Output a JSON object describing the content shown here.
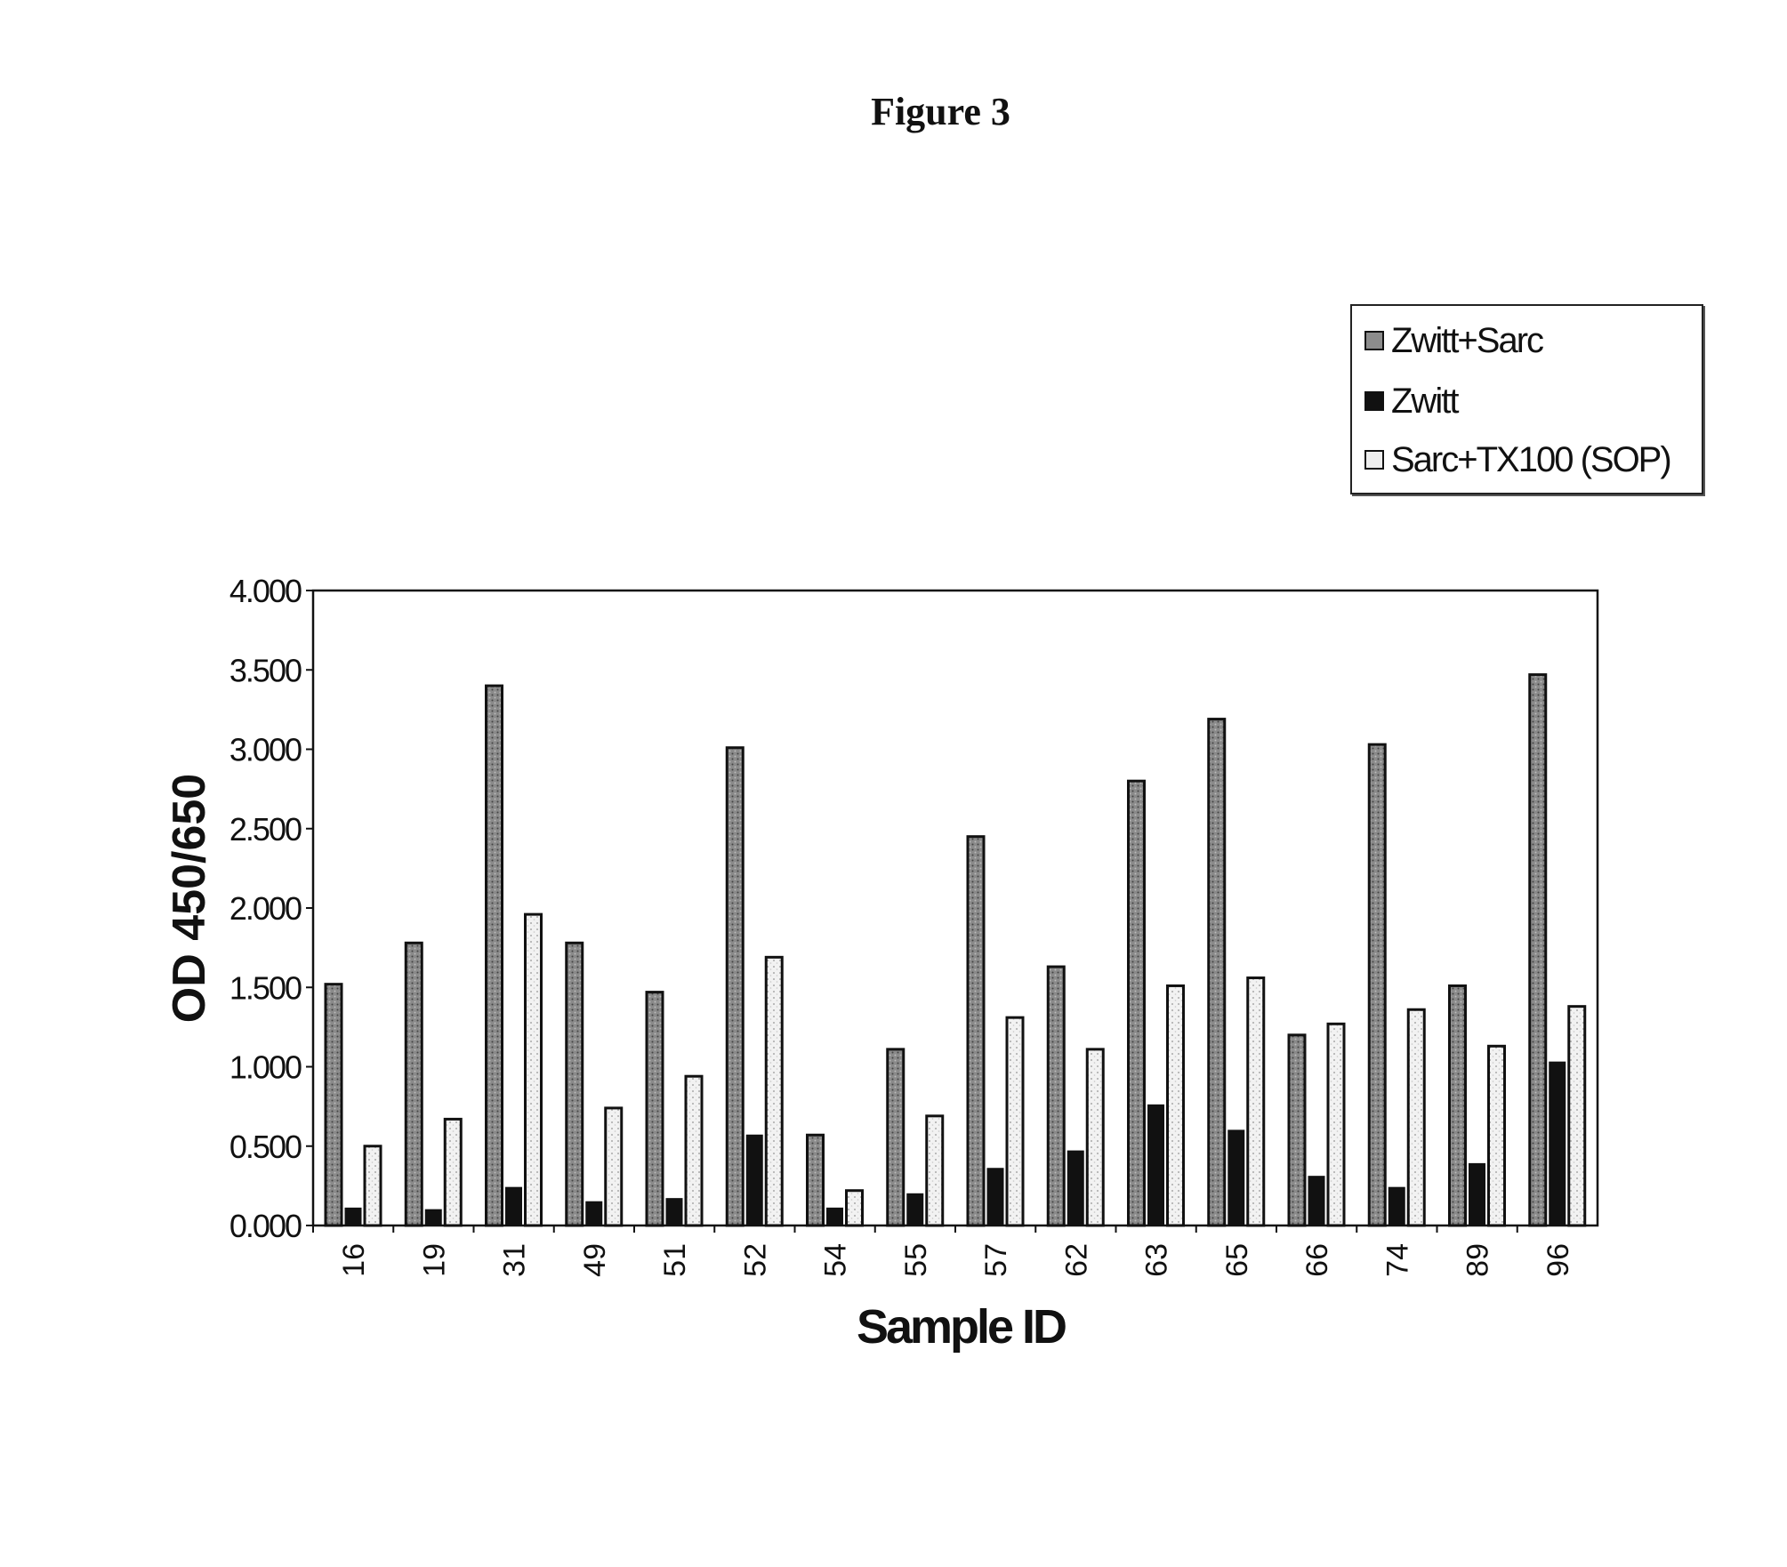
{
  "figure": {
    "title": "Figure 3"
  },
  "chart_data": {
    "type": "bar",
    "title": "",
    "xlabel": "Sample ID",
    "ylabel": "OD 450/650",
    "ylim": [
      0,
      4
    ],
    "yticks": [
      "0.000",
      "0.500",
      "1.000",
      "1.500",
      "2.000",
      "2.500",
      "3.000",
      "3.500",
      "4.000"
    ],
    "ytick_values": [
      0,
      0.5,
      1,
      1.5,
      2,
      2.5,
      3,
      3.5,
      4
    ],
    "categories": [
      "16",
      "19",
      "31",
      "49",
      "51",
      "52",
      "54",
      "55",
      "57",
      "62",
      "63",
      "65",
      "66",
      "74",
      "89",
      "96"
    ],
    "series": [
      {
        "name": "Zwitt+Sarc",
        "color": "#9a9a9a",
        "pattern": "dots-dark",
        "values": [
          1.52,
          1.78,
          3.4,
          1.78,
          1.47,
          3.01,
          0.57,
          1.11,
          2.45,
          1.63,
          2.8,
          3.19,
          1.2,
          3.03,
          1.51,
          3.47
        ]
      },
      {
        "name": "Zwitt",
        "color": "#111111",
        "pattern": "solid",
        "values": [
          0.11,
          0.1,
          0.24,
          0.15,
          0.17,
          0.57,
          0.11,
          0.2,
          0.36,
          0.47,
          0.76,
          0.6,
          0.31,
          0.24,
          0.39,
          1.03
        ]
      },
      {
        "name": "Sarc+TX100 (SOP)",
        "color": "#e6e6e6",
        "pattern": "dots-light",
        "values": [
          0.5,
          0.67,
          1.96,
          0.74,
          0.94,
          1.69,
          0.22,
          0.69,
          1.31,
          1.11,
          1.51,
          1.56,
          1.27,
          1.36,
          1.13,
          1.38
        ]
      }
    ],
    "grid": false,
    "legend": "top-right"
  }
}
